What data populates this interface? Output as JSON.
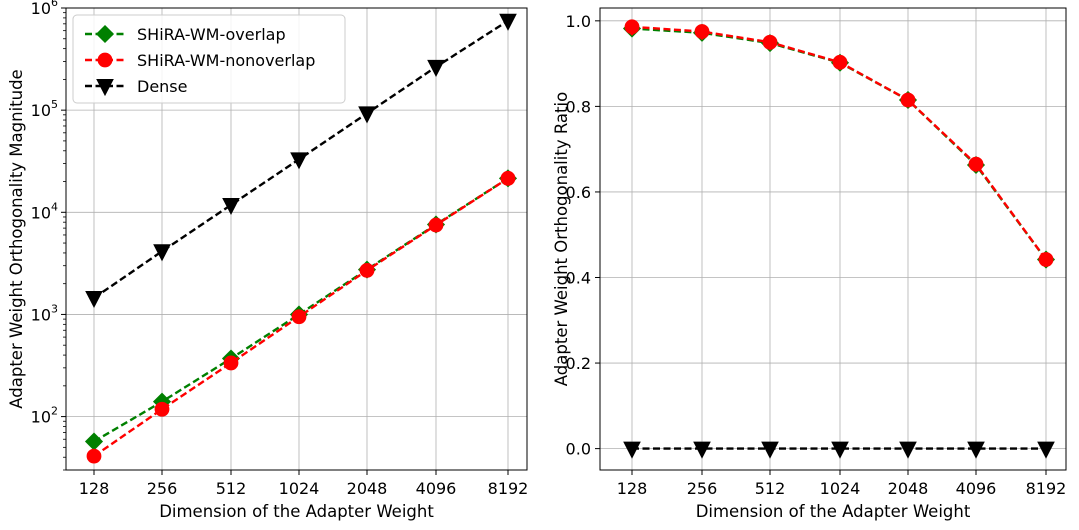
{
  "chart_data": [
    {
      "type": "line",
      "title": "",
      "xlabel": "Dimension of the Adapter Weight",
      "ylabel": "Adapter Weight Orthogonality Magnitude",
      "yscale": "log",
      "ylim": [
        30,
        1000000
      ],
      "categories": [
        "128",
        "256",
        "512",
        "1024",
        "2048",
        "4096",
        "8192"
      ],
      "yticks": [
        {
          "value": 100,
          "base": "10",
          "exp": "2"
        },
        {
          "value": 1000,
          "base": "10",
          "exp": "3"
        },
        {
          "value": 10000,
          "base": "10",
          "exp": "4"
        },
        {
          "value": 100000,
          "base": "10",
          "exp": "5"
        },
        {
          "value": 1000000,
          "base": "10",
          "exp": "6"
        }
      ],
      "grid": true,
      "legend_position": "top-left",
      "series": [
        {
          "name": "SHiRA-WM-overlap",
          "color": "#008000",
          "line_style": "dashed",
          "marker": "diamond",
          "marker_face": "#008000",
          "marker_edge": "#008000",
          "values": [
            57,
            140,
            370,
            1000,
            2750,
            7600,
            21500
          ]
        },
        {
          "name": "SHiRA-WM-nonoverlap",
          "color": "#ff0000",
          "line_style": "dashed",
          "marker": "circle",
          "marker_face": "#ff0000",
          "marker_edge": "#ff0000",
          "values": [
            41,
            118,
            335,
            950,
            2700,
            7500,
            21500
          ]
        },
        {
          "name": "Dense",
          "color": "#000000",
          "line_style": "dashed",
          "marker": "triangle-down",
          "marker_face": "#000000",
          "marker_edge": "#000000",
          "values": [
            1450,
            4150,
            11800,
            33000,
            93000,
            265000,
            750000
          ]
        }
      ]
    },
    {
      "type": "line",
      "title": "",
      "xlabel": "Dimension of the Adapter Weight",
      "ylabel": "Adapter Weight Orthogonality Ratio",
      "yscale": "linear",
      "ylim": [
        -0.05,
        1.03
      ],
      "categories": [
        "128",
        "256",
        "512",
        "1024",
        "2048",
        "4096",
        "8192"
      ],
      "yticks": [
        {
          "value": 0.0,
          "label": "0.0"
        },
        {
          "value": 0.2,
          "label": "0.2"
        },
        {
          "value": 0.4,
          "label": "0.4"
        },
        {
          "value": 0.6,
          "label": "0.6"
        },
        {
          "value": 0.8,
          "label": "0.8"
        },
        {
          "value": 1.0,
          "label": "1.0"
        }
      ],
      "grid": true,
      "legend_position": "none",
      "series": [
        {
          "color": "#008000",
          "line_style": "dashed",
          "marker": "diamond",
          "marker_face": "#ff0000",
          "marker_edge": "#008000",
          "values": [
            0.982,
            0.972,
            0.948,
            0.902,
            0.815,
            0.663,
            0.442
          ]
        },
        {
          "color": "#ff0000",
          "line_style": "dashed",
          "marker": "circle",
          "marker_face": "#ff0000",
          "marker_edge": "#ff0000",
          "values": [
            0.986,
            0.975,
            0.95,
            0.903,
            0.815,
            0.665,
            0.442
          ]
        },
        {
          "color": "#000000",
          "line_style": "dashed",
          "marker": "triangle-down",
          "marker_face": "#000000",
          "marker_edge": "#000000",
          "values": [
            0.0,
            0.0,
            0.0,
            0.0,
            0.0,
            0.0,
            0.0
          ]
        }
      ]
    }
  ]
}
